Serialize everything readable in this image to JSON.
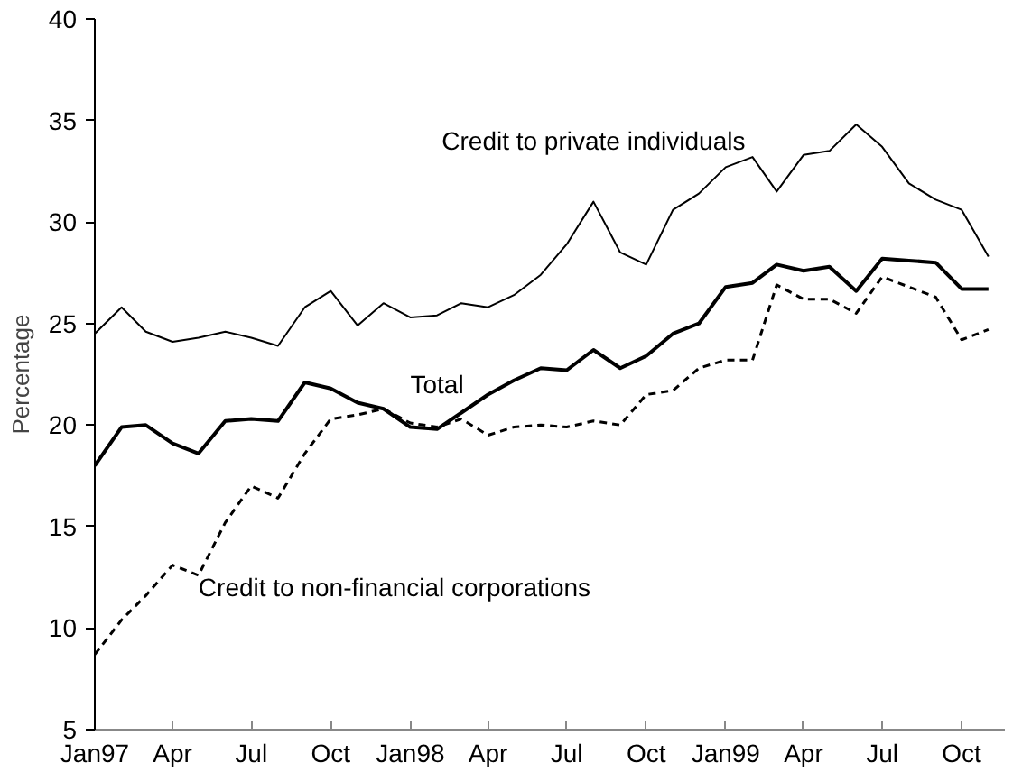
{
  "chart_data": {
    "type": "line",
    "ylabel": "Percentage",
    "x": [
      "1997-01",
      "1997-02",
      "1997-03",
      "1997-04",
      "1997-05",
      "1997-06",
      "1997-07",
      "1997-08",
      "1997-09",
      "1997-10",
      "1997-11",
      "1997-12",
      "1998-01",
      "1998-02",
      "1998-03",
      "1998-04",
      "1998-05",
      "1998-06",
      "1998-07",
      "1998-08",
      "1998-09",
      "1998-10",
      "1998-11",
      "1998-12",
      "1999-01",
      "1999-02",
      "1999-03",
      "1999-04",
      "1999-05",
      "1999-06",
      "1999-07",
      "1999-08",
      "1999-09",
      "1999-10",
      "1999-11"
    ],
    "series": [
      {
        "name": "Credit to private individuals",
        "color": "#000000",
        "line_style": "solid",
        "values": [
          24.5,
          25.8,
          24.6,
          24.1,
          24.3,
          24.6,
          24.3,
          23.9,
          25.8,
          26.6,
          24.9,
          26.0,
          25.3,
          25.4,
          26.0,
          25.8,
          26.4,
          27.4,
          28.9,
          31.0,
          28.5,
          27.9,
          30.6,
          31.4,
          32.7,
          33.2,
          31.5,
          33.3,
          33.5,
          34.8,
          33.7,
          31.9,
          31.1,
          30.6,
          28.3
        ]
      },
      {
        "name": "Total",
        "color": "#000000",
        "line_style": "solid",
        "values": [
          18.0,
          19.9,
          20.0,
          19.1,
          18.6,
          20.2,
          20.3,
          20.2,
          22.1,
          21.8,
          21.1,
          20.8,
          19.9,
          19.8,
          20.6,
          21.5,
          22.2,
          22.8,
          22.7,
          23.7,
          22.8,
          23.4,
          24.5,
          25.0,
          26.8,
          27.0,
          27.9,
          27.6,
          27.8,
          26.6,
          28.2,
          28.1,
          28.0,
          26.7,
          26.7
        ]
      },
      {
        "name": "Credit to non-financial corporations",
        "color": "#000000",
        "line_style": "dashed",
        "values": [
          8.7,
          10.4,
          11.6,
          13.1,
          12.6,
          15.2,
          17.0,
          16.4,
          18.6,
          20.3,
          20.5,
          20.8,
          20.1,
          19.9,
          20.3,
          19.5,
          19.9,
          20.0,
          19.9,
          20.2,
          20.0,
          21.5,
          21.7,
          22.8,
          23.2,
          23.2,
          26.9,
          26.2,
          26.2,
          25.5,
          27.3,
          26.8,
          26.3,
          24.2,
          24.7
        ]
      }
    ],
    "xlim": [
      "1997-01-01",
      "1999-11-20"
    ],
    "xticks": [
      {
        "value": "1997-01",
        "label": "Jan97"
      },
      {
        "value": "1997-04",
        "label": "Apr"
      },
      {
        "value": "1997-07",
        "label": "Jul"
      },
      {
        "value": "1997-10",
        "label": "Oct"
      },
      {
        "value": "1998-01",
        "label": "Jan98"
      },
      {
        "value": "1998-04",
        "label": "Apr"
      },
      {
        "value": "1998-07",
        "label": "Jul"
      },
      {
        "value": "1998-10",
        "label": "Oct"
      },
      {
        "value": "1999-01",
        "label": "Jan99"
      },
      {
        "value": "1999-04",
        "label": "Apr"
      },
      {
        "value": "1999-07",
        "label": "Jul"
      },
      {
        "value": "1999-10",
        "label": "Oct"
      }
    ],
    "ylim": [
      5,
      40
    ],
    "yticks": [
      5,
      10,
      15,
      20,
      25,
      30,
      35,
      40
    ],
    "grid": false,
    "legend": false,
    "marker": "none"
  }
}
